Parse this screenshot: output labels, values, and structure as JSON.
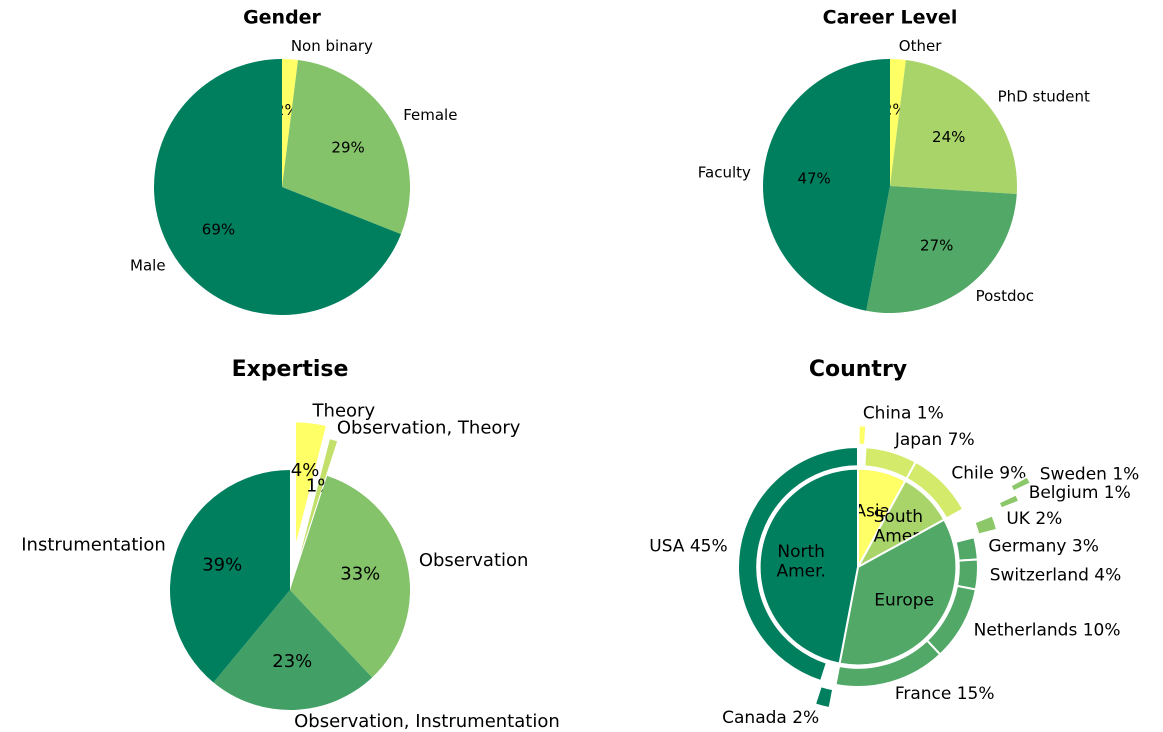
{
  "chart_data": [
    {
      "type": "pie",
      "title": "Gender",
      "categories": [
        "Non binary",
        "Female",
        "Male"
      ],
      "values": [
        2,
        29,
        69
      ],
      "value_labels": [
        "2%",
        "29%",
        "69%"
      ],
      "colors": [
        "#ffff66",
        "#84c36a",
        "#007f5f"
      ]
    },
    {
      "type": "pie",
      "title": "Career Level",
      "categories": [
        "Other",
        "PhD student",
        "Postdoc",
        "Faculty"
      ],
      "values": [
        2,
        24,
        27,
        47
      ],
      "value_labels": [
        "2%",
        "24%",
        "27%",
        "47%"
      ],
      "colors": [
        "#ffff66",
        "#a8d46a",
        "#52a866",
        "#007f5f"
      ]
    },
    {
      "type": "pie",
      "title": "Expertise",
      "categories": [
        "Theory",
        "Observation, Theory",
        "Observation",
        "Observation, Instrumentation",
        "Instrumentation"
      ],
      "values": [
        4,
        1,
        33,
        23,
        39
      ],
      "value_labels": [
        "4%",
        "1%",
        "33%",
        "23%",
        "39%"
      ],
      "colors": [
        "#ffff66",
        "#c2e06a",
        "#84c36a",
        "#42a066",
        "#007f5f"
      ],
      "explode": [
        0.4,
        0.3,
        0,
        0,
        0
      ]
    },
    {
      "type": "nested_pie",
      "title": "Country",
      "inner": {
        "categories": [
          "Asia",
          "South\nAmer.",
          "Europe",
          "North\nAmer."
        ],
        "values": [
          8,
          9,
          36,
          47
        ],
        "colors": [
          "#ffff66",
          "#a8d46a",
          "#52a866",
          "#007f5f"
        ]
      },
      "outer": {
        "categories": [
          "China 1%",
          "Japan 7%",
          "Chile 9%",
          "Sweden 1%",
          "Belgium 1%",
          "UK 2%",
          "Germany 3%",
          "Switzerland 4%",
          "Netherlands 10%",
          "France 15%",
          "Canada 2%",
          "USA 45%"
        ],
        "values": [
          1,
          7,
          9,
          1,
          1,
          2,
          3,
          4,
          10,
          15,
          2,
          45
        ],
        "colors": [
          "#ffff66",
          "#d4ea6b",
          "#d4ea6b",
          "#8cc86a",
          "#8cc86a",
          "#8cc86a",
          "#52a866",
          "#52a866",
          "#52a866",
          "#52a866",
          "#007f5f",
          "#007f5f"
        ],
        "explode": [
          0.18,
          0,
          0,
          0.6,
          0.45,
          0.2,
          0,
          0,
          0,
          0,
          0.2,
          0
        ]
      }
    }
  ]
}
